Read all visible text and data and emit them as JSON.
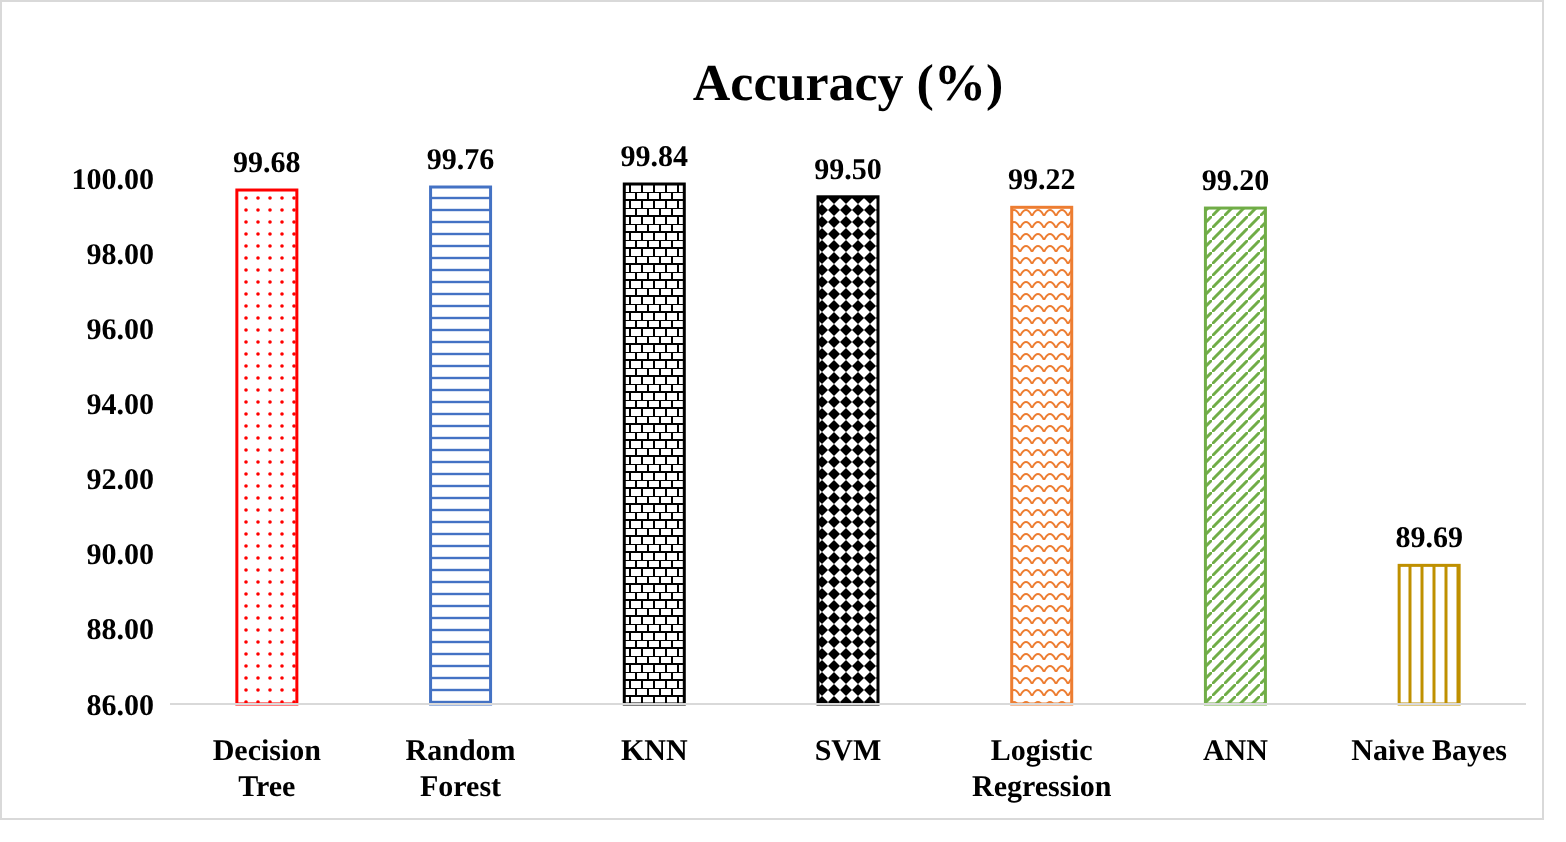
{
  "chart_data": {
    "type": "bar",
    "title": "Accuracy (%)",
    "categories": [
      "Decision Tree",
      "Random Forest",
      "KNN",
      "SVM",
      "Logistic Regression",
      "ANN",
      "Naive Bayes"
    ],
    "values": [
      99.68,
      99.76,
      99.84,
      99.5,
      99.22,
      99.2,
      89.69
    ],
    "value_labels": [
      "99.68",
      "99.76",
      "99.84",
      "99.50",
      "99.22",
      "99.20",
      "89.69"
    ],
    "colors": [
      "#ff0000",
      "#4472c4",
      "#000000",
      "#000000",
      "#ed7d31",
      "#70ad47",
      "#bf9000"
    ],
    "ylim": [
      86,
      100
    ],
    "yticks": [
      {
        "value": 86,
        "label": "86.00"
      },
      {
        "value": 88,
        "label": "88.00"
      },
      {
        "value": 90,
        "label": "90.00"
      },
      {
        "value": 92,
        "label": "92.00"
      },
      {
        "value": 94,
        "label": "94.00"
      },
      {
        "value": 96,
        "label": "96.00"
      },
      {
        "value": 98,
        "label": "98.00"
      },
      {
        "value": 100,
        "label": "100.00"
      }
    ],
    "grid": false
  }
}
